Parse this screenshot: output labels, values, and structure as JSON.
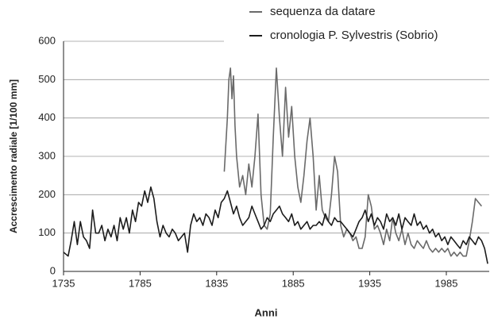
{
  "chart_data": {
    "type": "line",
    "xlabel": "Anni",
    "ylabel": "Accrescimento radiale [1/100 mm]",
    "xlim": [
      1735,
      2013
    ],
    "xticks": [
      1735,
      1785,
      1835,
      1885,
      1935,
      1985
    ],
    "ylim": [
      0,
      600
    ],
    "yticks": [
      0,
      100,
      200,
      300,
      400,
      500,
      600
    ],
    "grid": true,
    "legend": "top-right",
    "series": [
      {
        "name": "sequenza da datare",
        "color": "#6a6a6a",
        "x": [
          1840,
          1842,
          1843,
          1844,
          1845,
          1846,
          1847,
          1848,
          1850,
          1852,
          1854,
          1856,
          1858,
          1860,
          1862,
          1864,
          1866,
          1868,
          1870,
          1872,
          1874,
          1876,
          1878,
          1880,
          1882,
          1884,
          1886,
          1888,
          1890,
          1892,
          1894,
          1896,
          1898,
          1900,
          1902,
          1904,
          1906,
          1908,
          1910,
          1912,
          1914,
          1916,
          1918,
          1920,
          1922,
          1924,
          1926,
          1928,
          1930,
          1932,
          1934,
          1936,
          1938,
          1940,
          1942,
          1944,
          1946,
          1948,
          1950,
          1952,
          1954,
          1956,
          1958,
          1960,
          1962,
          1964,
          1966,
          1968,
          1970,
          1972,
          1974,
          1976,
          1978,
          1980,
          1982,
          1984,
          1986,
          1988,
          1990,
          1992,
          1994,
          1996,
          1998,
          2000,
          2002,
          2004,
          2006,
          2008
        ],
        "values": [
          260,
          400,
          500,
          530,
          450,
          510,
          380,
          300,
          220,
          250,
          200,
          280,
          220,
          300,
          410,
          200,
          120,
          110,
          150,
          350,
          530,
          400,
          300,
          480,
          350,
          430,
          300,
          220,
          180,
          250,
          340,
          400,
          300,
          160,
          250,
          160,
          140,
          130,
          200,
          300,
          260,
          120,
          90,
          110,
          100,
          80,
          90,
          60,
          60,
          90,
          200,
          170,
          110,
          120,
          100,
          70,
          110,
          80,
          140,
          100,
          80,
          110,
          70,
          100,
          70,
          60,
          80,
          70,
          60,
          80,
          60,
          50,
          60,
          50,
          60,
          50,
          60,
          40,
          50,
          40,
          50,
          40,
          40,
          80,
          130,
          190,
          180,
          170
        ]
      },
      {
        "name": "cronologia P. Sylvestris (Sobrio)",
        "color": "#1c1c1c",
        "x": [
          1735,
          1738,
          1740,
          1742,
          1744,
          1746,
          1748,
          1750,
          1752,
          1754,
          1756,
          1758,
          1760,
          1762,
          1764,
          1766,
          1768,
          1770,
          1772,
          1774,
          1776,
          1778,
          1780,
          1782,
          1784,
          1786,
          1788,
          1790,
          1792,
          1794,
          1796,
          1798,
          1800,
          1802,
          1804,
          1806,
          1808,
          1810,
          1812,
          1814,
          1816,
          1818,
          1820,
          1822,
          1824,
          1826,
          1828,
          1830,
          1832,
          1834,
          1836,
          1838,
          1840,
          1842,
          1844,
          1846,
          1848,
          1850,
          1852,
          1854,
          1856,
          1858,
          1860,
          1862,
          1864,
          1866,
          1868,
          1870,
          1872,
          1874,
          1876,
          1878,
          1880,
          1882,
          1884,
          1886,
          1888,
          1890,
          1892,
          1894,
          1896,
          1898,
          1900,
          1902,
          1904,
          1906,
          1908,
          1910,
          1912,
          1914,
          1916,
          1918,
          1920,
          1922,
          1924,
          1926,
          1928,
          1930,
          1932,
          1934,
          1936,
          1938,
          1940,
          1942,
          1944,
          1946,
          1948,
          1950,
          1952,
          1954,
          1956,
          1958,
          1960,
          1962,
          1964,
          1966,
          1968,
          1970,
          1972,
          1974,
          1976,
          1978,
          1980,
          1982,
          1984,
          1986,
          1988,
          1990,
          1992,
          1994,
          1996,
          1998,
          2000,
          2002,
          2004,
          2006,
          2008,
          2010,
          2012
        ],
        "values": [
          50,
          40,
          80,
          130,
          70,
          130,
          90,
          80,
          60,
          160,
          100,
          100,
          120,
          80,
          110,
          90,
          120,
          80,
          140,
          110,
          140,
          100,
          160,
          130,
          180,
          170,
          210,
          180,
          220,
          190,
          130,
          90,
          120,
          100,
          90,
          110,
          100,
          80,
          90,
          100,
          50,
          120,
          150,
          130,
          140,
          120,
          150,
          140,
          120,
          160,
          140,
          180,
          190,
          210,
          180,
          150,
          170,
          140,
          120,
          130,
          140,
          170,
          150,
          130,
          110,
          120,
          140,
          130,
          150,
          160,
          170,
          150,
          140,
          130,
          150,
          120,
          130,
          110,
          120,
          130,
          110,
          120,
          120,
          130,
          120,
          150,
          130,
          120,
          140,
          130,
          130,
          120,
          110,
          100,
          90,
          110,
          130,
          140,
          160,
          130,
          150,
          120,
          140,
          130,
          110,
          150,
          130,
          140,
          120,
          150,
          110,
          140,
          130,
          120,
          150,
          120,
          130,
          110,
          120,
          100,
          110,
          90,
          100,
          80,
          90,
          70,
          90,
          80,
          70,
          60,
          80,
          70,
          90,
          80,
          70,
          90,
          80,
          60,
          20
        ]
      }
    ]
  }
}
